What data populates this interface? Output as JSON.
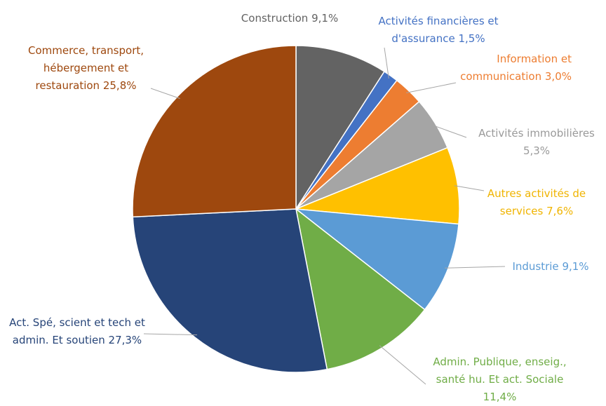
{
  "chart_data": {
    "type": "pie",
    "categories": [
      "Construction",
      "Activités financières et d'assurance",
      "Information et communication",
      "Activités immobilières",
      "Autres activités de services",
      "Industrie",
      "Admin. Publique, enseig., santé hu. Et act. Sociale",
      "Act. Spé, scient et tech et admin. Et soutien",
      "Commerce, transport, hébergement et restauration"
    ],
    "values": [
      9.1,
      1.5,
      3.0,
      5.3,
      7.6,
      9.1,
      11.4,
      27.3,
      25.8
    ],
    "value_labels": [
      "9,1%",
      "1,5%",
      "3,0%",
      "5,3%",
      "7,6%",
      "9,1%",
      "11,4%",
      "27,3%",
      "25,8%"
    ],
    "colors": [
      "#636363",
      "#4472c4",
      "#ed7d31",
      "#a5a5a5",
      "#ffc000",
      "#5b9bd5",
      "#70ad47",
      "#264478",
      "#9e480e"
    ]
  }
}
